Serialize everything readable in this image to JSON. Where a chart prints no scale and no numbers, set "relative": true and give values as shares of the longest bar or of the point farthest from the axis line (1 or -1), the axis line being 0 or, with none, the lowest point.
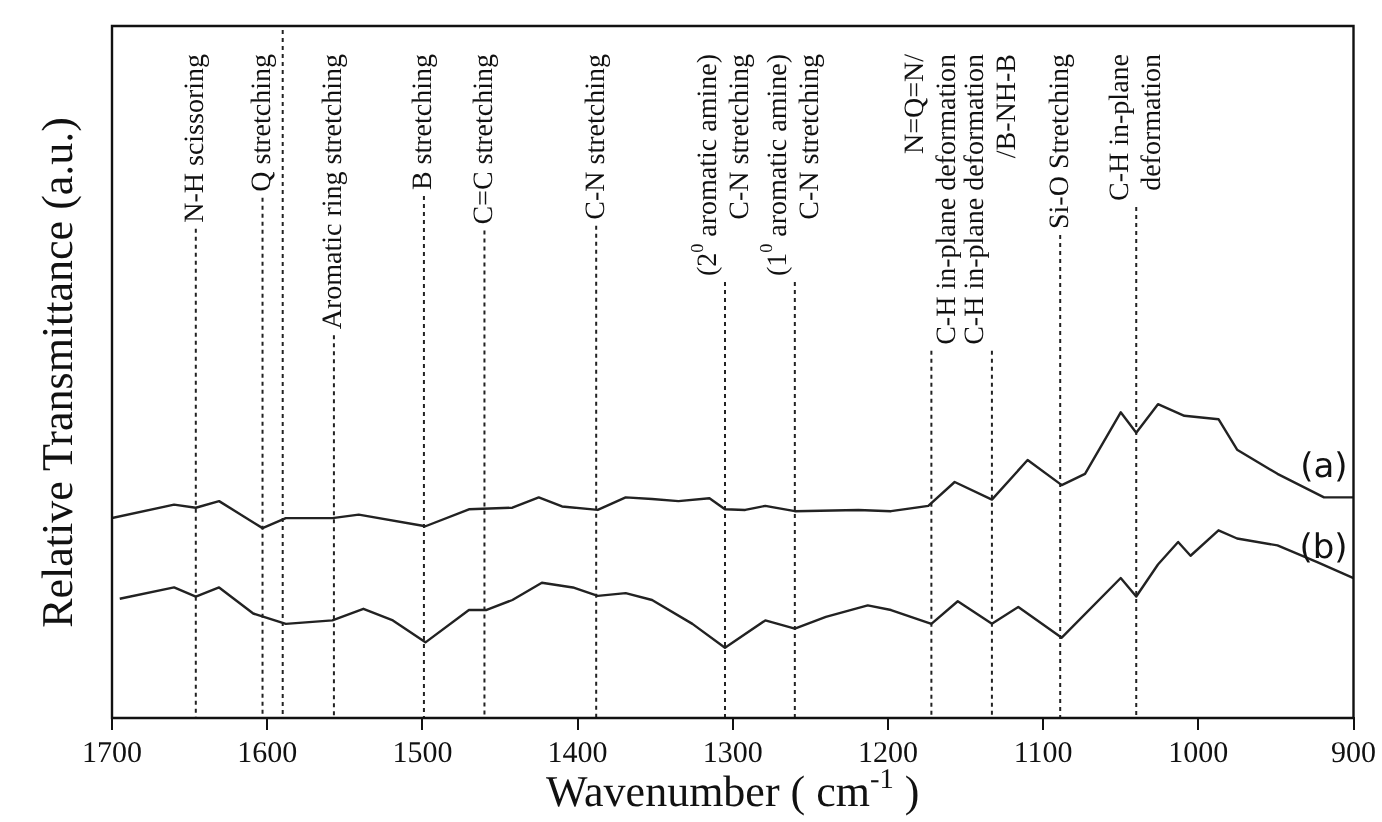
{
  "chart_data": {
    "type": "line",
    "xlabel": "Wavenumber ( cm$^{-1}$ )",
    "ylabel": "Relative Transmittance (a.u.)",
    "relative": true,
    "xlim": [
      1700,
      900
    ],
    "xticks": [
      1700,
      1600,
      1500,
      1400,
      1300,
      1200,
      1100,
      1000,
      900
    ],
    "grid": false,
    "legend": false,
    "marker": "none",
    "line_style": "solid",
    "series": [
      {
        "name": "(a)",
        "color": "#222222",
        "x": [
          1700,
          1660,
          1646,
          1631,
          1603,
          1588,
          1558,
          1541,
          1498,
          1470,
          1442,
          1425,
          1410,
          1387,
          1369,
          1352,
          1335,
          1315,
          1305,
          1292,
          1279,
          1260,
          1219,
          1198,
          1174,
          1157,
          1133,
          1110,
          1088,
          1073,
          1050,
          1040,
          1026,
          1009,
          987,
          975,
          949,
          919,
          900
        ],
        "values": [
          0.637,
          0.68,
          0.67,
          0.691,
          0.605,
          0.637,
          0.637,
          0.648,
          0.611,
          0.665,
          0.67,
          0.703,
          0.674,
          0.663,
          0.703,
          0.698,
          0.691,
          0.7,
          0.665,
          0.663,
          0.676,
          0.659,
          0.663,
          0.659,
          0.676,
          0.752,
          0.696,
          0.822,
          0.742,
          0.778,
          0.974,
          0.909,
          1,
          0.963,
          0.952,
          0.855,
          0.778,
          0.703,
          0.703
        ]
      },
      {
        "name": "(b)",
        "color": "#222222",
        "x": [
          1695,
          1660,
          1646,
          1631,
          1609,
          1588,
          1558,
          1538,
          1519,
          1498,
          1470,
          1459,
          1442,
          1423,
          1403,
          1387,
          1369,
          1352,
          1326,
          1305,
          1279,
          1260,
          1240,
          1213,
          1198,
          1172,
          1155,
          1133,
          1116,
          1088,
          1050,
          1040,
          1026,
          1013,
          1005,
          987,
          975,
          949,
          923,
          900
        ],
        "values": [
          0.38,
          0.416,
          0.387,
          0.416,
          0.333,
          0.3,
          0.311,
          0.348,
          0.311,
          0.241,
          0.344,
          0.344,
          0.376,
          0.431,
          0.416,
          0.389,
          0.398,
          0.376,
          0.3,
          0.224,
          0.311,
          0.285,
          0.322,
          0.359,
          0.344,
          0.3,
          0.372,
          0.3,
          0.354,
          0.256,
          0.446,
          0.387,
          0.489,
          0.561,
          0.517,
          0.598,
          0.572,
          0.55,
          0.496,
          0.446
        ]
      }
    ],
    "ref_lines": [
      {
        "axis": "x",
        "value": 1646,
        "label": "N-H scissoring",
        "line_style": "dotted"
      },
      {
        "axis": "x",
        "value": 1603,
        "label": "Q stretching",
        "line_style": "dotted"
      },
      {
        "axis": "x",
        "value": 1590,
        "label": null,
        "line_style": "dotted"
      },
      {
        "axis": "x",
        "value": 1557,
        "label": "Aromatic ring stretching",
        "line_style": "dotted"
      },
      {
        "axis": "x",
        "value": 1499,
        "label": "B stretching",
        "line_style": "dotted"
      },
      {
        "axis": "x",
        "value": 1460,
        "label": "C=C stretching",
        "line_style": "dotted"
      },
      {
        "axis": "x",
        "value": 1388,
        "label": "C-N stretching",
        "line_style": "dotted"
      },
      {
        "axis": "x",
        "value": 1305,
        "label": "(2$^{0}$ aromatic amine)\nC-N stretching",
        "line_style": "dotted"
      },
      {
        "axis": "x",
        "value": 1260,
        "label": "(1$^{0}$ aromatic amine)\nC-N stretching",
        "line_style": "dotted"
      },
      {
        "axis": "x",
        "value": 1172,
        "label": "N=Q=N/\nC-H in-plane deformation",
        "line_style": "dotted"
      },
      {
        "axis": "x",
        "value": 1133,
        "label": "C-H in-plane deformation\n/B-NH-B",
        "line_style": "dotted"
      },
      {
        "axis": "x",
        "value": 1089,
        "label": "Si-O Stretching",
        "line_style": "dotted"
      },
      {
        "axis": "x",
        "value": 1040,
        "label": "C-H in-plane\ndeformation",
        "line_style": "dotted"
      }
    ]
  }
}
